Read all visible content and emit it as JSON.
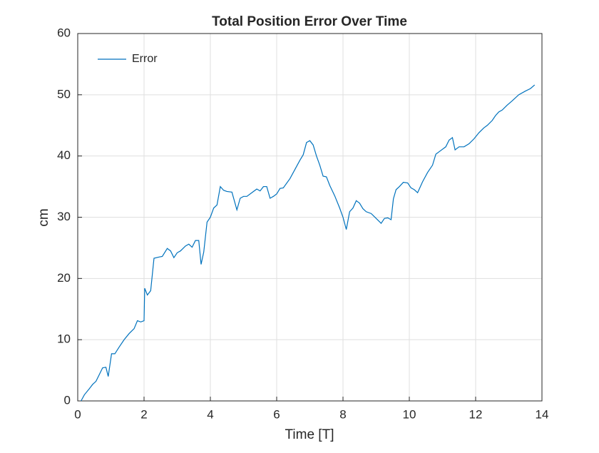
{
  "chart_data": {
    "type": "line",
    "title": "Total Position Error Over Time",
    "xlabel": "Time [T]",
    "ylabel": "cm",
    "x": [
      0.1,
      0.2,
      0.35,
      0.45,
      0.55,
      0.65,
      0.75,
      0.85,
      0.92,
      1.02,
      1.12,
      1.25,
      1.4,
      1.55,
      1.7,
      1.8,
      1.9,
      2.0,
      2.02,
      2.1,
      2.2,
      2.3,
      2.45,
      2.55,
      2.7,
      2.8,
      2.9,
      3.0,
      3.1,
      3.25,
      3.35,
      3.45,
      3.55,
      3.65,
      3.72,
      3.8,
      3.9,
      4.0,
      4.1,
      4.2,
      4.3,
      4.4,
      4.5,
      4.65,
      4.8,
      4.9,
      5.0,
      5.1,
      5.25,
      5.4,
      5.5,
      5.6,
      5.7,
      5.8,
      5.9,
      6.0,
      6.1,
      6.2,
      6.4,
      6.55,
      6.7,
      6.8,
      6.9,
      7.0,
      7.1,
      7.2,
      7.3,
      7.4,
      7.5,
      7.6,
      7.75,
      7.9,
      8.0,
      8.1,
      8.2,
      8.3,
      8.4,
      8.5,
      8.6,
      8.7,
      8.85,
      9.0,
      9.15,
      9.25,
      9.35,
      9.45,
      9.52,
      9.6,
      9.7,
      9.82,
      9.95,
      10.05,
      10.15,
      10.25,
      10.4,
      10.55,
      10.7,
      10.8,
      10.95,
      11.1,
      11.2,
      11.3,
      11.38,
      11.5,
      11.65,
      11.8,
      11.95,
      12.1,
      12.25,
      12.35,
      12.5,
      12.6,
      12.7,
      12.8,
      12.95,
      13.1,
      13.3,
      13.5,
      13.65,
      13.78
    ],
    "series": [
      {
        "name": "Error",
        "color": "#0072bd",
        "values": [
          0,
          1,
          2,
          2.7,
          3.2,
          4.3,
          5.4,
          5.5,
          4.0,
          7.7,
          7.7,
          8.8,
          10,
          11,
          11.8,
          13.1,
          12.9,
          13.1,
          18.4,
          17.3,
          18,
          23.3,
          23.5,
          23.6,
          24.9,
          24.5,
          23.4,
          24.2,
          24.5,
          25.3,
          25.6,
          25.1,
          26.2,
          26.2,
          22.3,
          24.3,
          29.2,
          30,
          31.5,
          32,
          35,
          34.4,
          34.2,
          34.1,
          31.2,
          33.1,
          33.4,
          33.4,
          34,
          34.6,
          34.3,
          35,
          35,
          33.1,
          33.4,
          33.8,
          34.7,
          34.8,
          36.3,
          37.8,
          39.3,
          40.2,
          42.2,
          42.5,
          41.8,
          40,
          38.5,
          36.7,
          36.6,
          35.2,
          33.5,
          31.5,
          30,
          28,
          30.9,
          31.5,
          32.7,
          32.3,
          31.4,
          30.9,
          30.6,
          29.8,
          29,
          29.8,
          29.9,
          29.6,
          33,
          34.5,
          35,
          35.7,
          35.6,
          34.8,
          34.5,
          34,
          35.8,
          37.3,
          38.5,
          40.3,
          40.9,
          41.5,
          42.6,
          43,
          41,
          41.5,
          41.5,
          42,
          42.8,
          43.8,
          44.6,
          45,
          45.8,
          46.6,
          47.2,
          47.5,
          48.3,
          49,
          50,
          50.6,
          51,
          51.6
        ]
      }
    ],
    "xlim": [
      0,
      14
    ],
    "xticks": [
      0,
      2,
      4,
      6,
      8,
      10,
      12,
      14
    ],
    "ylim": [
      0,
      60
    ],
    "yticks": [
      0,
      10,
      20,
      30,
      40,
      50,
      60
    ],
    "grid": true,
    "legend": "upper-left"
  }
}
